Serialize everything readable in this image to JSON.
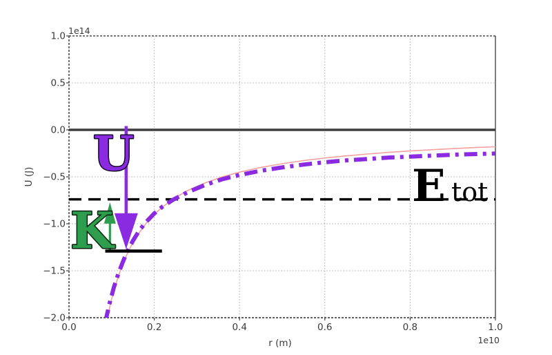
{
  "figure": {
    "ylabel": "U (J)",
    "xlabel": "r (m)",
    "y_scale_label": "1e14",
    "x_scale_label": "1e10",
    "background": "#ffffff"
  },
  "chart_data": {
    "type": "line",
    "title": "",
    "xlabel": "r (m)",
    "ylabel": "U (J)",
    "x_scale": "1e10",
    "y_scale": "1e14",
    "xlim": [
      0.0,
      1.0
    ],
    "ylim": [
      -2.0,
      1.0
    ],
    "grid": true,
    "legend": "none",
    "x_ticks": [
      0.0,
      0.2,
      0.4,
      0.6,
      0.8,
      1.0
    ],
    "x_tick_labels": [
      "0.0",
      "0.2",
      "0.4",
      "0.6",
      "0.8",
      "1.0"
    ],
    "y_ticks": [
      1.0,
      0.5,
      0.0,
      -0.5,
      -1.0,
      -1.5,
      -2.0
    ],
    "y_tick_labels": [
      "1.0",
      "0.5",
      "0.0",
      "−0.5",
      "−1.0",
      "−1.5",
      "−2.0"
    ],
    "grid_color": "#a8a8a8",
    "tick_label_color": "#3a3a3a",
    "series": [
      {
        "name": "zero-energy-line",
        "type": "hline",
        "y": 0.0,
        "x_range": [
          0.0,
          1.0
        ],
        "color": "#3d3d3d",
        "width": 3.6,
        "dash": "solid"
      },
      {
        "name": "total-energy-line",
        "type": "hline",
        "y": -0.74,
        "x_range": [
          0.0,
          1.0
        ],
        "color": "#000000",
        "width": 3.5,
        "dash": "dashed"
      },
      {
        "name": "potential-curve-reference",
        "type": "line",
        "color": "#f2a0a0",
        "width": 1.6,
        "dash": "solid",
        "points": [
          [
            0.086,
            -2.09
          ],
          [
            0.09,
            -2.0
          ],
          [
            0.1,
            -1.8
          ],
          [
            0.11,
            -1.64
          ],
          [
            0.12,
            -1.5
          ],
          [
            0.13,
            -1.385
          ],
          [
            0.14,
            -1.286
          ],
          [
            0.15,
            -1.2
          ],
          [
            0.16,
            -1.125
          ],
          [
            0.18,
            -1.0
          ],
          [
            0.2,
            -0.9
          ],
          [
            0.22,
            -0.818
          ],
          [
            0.25,
            -0.72
          ],
          [
            0.28,
            -0.643
          ],
          [
            0.32,
            -0.563
          ],
          [
            0.36,
            -0.5
          ],
          [
            0.4,
            -0.45
          ],
          [
            0.45,
            -0.4
          ],
          [
            0.5,
            -0.36
          ],
          [
            0.55,
            -0.327
          ],
          [
            0.6,
            -0.3
          ],
          [
            0.65,
            -0.277
          ],
          [
            0.7,
            -0.257
          ],
          [
            0.75,
            -0.24
          ],
          [
            0.8,
            -0.225
          ],
          [
            0.85,
            -0.212
          ],
          [
            0.9,
            -0.2
          ],
          [
            0.95,
            -0.189
          ],
          [
            1.0,
            -0.18
          ]
        ]
      },
      {
        "name": "potential-curve-emphasis",
        "type": "line",
        "color": "#8a2be2",
        "width": 6,
        "dash": "dash-dot",
        "points": [
          [
            0.085,
            -2.05
          ],
          [
            0.095,
            -1.85
          ],
          [
            0.105,
            -1.68
          ],
          [
            0.115,
            -1.54
          ],
          [
            0.125,
            -1.42
          ],
          [
            0.135,
            -1.31
          ],
          [
            0.15,
            -1.18
          ],
          [
            0.165,
            -1.07
          ],
          [
            0.18,
            -0.985
          ],
          [
            0.2,
            -0.89
          ],
          [
            0.22,
            -0.815
          ],
          [
            0.246,
            -0.74
          ],
          [
            0.28,
            -0.66
          ],
          [
            0.32,
            -0.585
          ],
          [
            0.36,
            -0.525
          ],
          [
            0.4,
            -0.48
          ],
          [
            0.45,
            -0.435
          ],
          [
            0.5,
            -0.4
          ],
          [
            0.55,
            -0.37
          ],
          [
            0.6,
            -0.345
          ],
          [
            0.65,
            -0.325
          ],
          [
            0.7,
            -0.31
          ],
          [
            0.75,
            -0.295
          ],
          [
            0.8,
            -0.285
          ],
          [
            0.85,
            -0.275
          ],
          [
            0.9,
            -0.265
          ],
          [
            0.95,
            -0.258
          ],
          [
            1.0,
            -0.252
          ]
        ]
      }
    ],
    "annotations": {
      "u_arrow": {
        "label": "U",
        "color": "#8a2be2",
        "outline": "#15082b",
        "x": 0.134,
        "from_y": 0.04,
        "to_y": -1.27,
        "head_len": 52,
        "head_halfwidth": 17,
        "shaft_width": 4.5
      },
      "k_arrow": {
        "label": "K",
        "color": "#2e9e4e",
        "outline": "#07230e",
        "x": 0.096,
        "from_y": -1.28,
        "to_y": -0.77,
        "head_len": 31,
        "head_halfwidth": 8.5,
        "shaft_width": 3.2
      },
      "turning_point_marker": {
        "y": -1.29,
        "x_range": [
          0.085,
          0.218
        ],
        "color": "#000000",
        "width": 4.5
      },
      "e_tot_label": {
        "main": "E",
        "sub": "tot",
        "color": "#000000"
      }
    }
  }
}
